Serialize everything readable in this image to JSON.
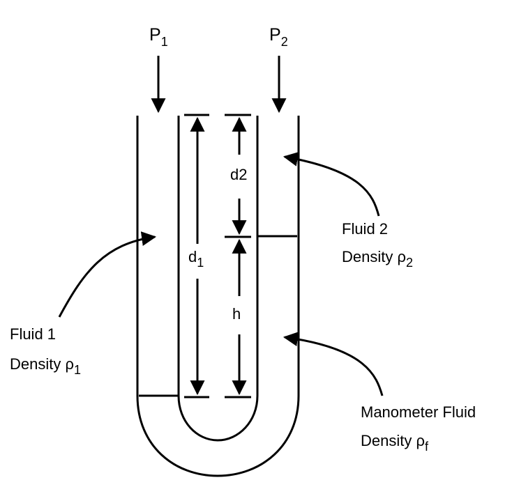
{
  "labels": {
    "p1": "P",
    "p1_sub": "1",
    "p2": "P",
    "p2_sub": "2",
    "d1": "d",
    "d1_sub": "1",
    "d2": "d2",
    "h": "h",
    "fluid1_name": "Fluid 1",
    "fluid1_density": "Density ρ",
    "fluid1_density_sub": "1",
    "fluid2_name": "Fluid 2",
    "fluid2_density": "Density ρ",
    "fluid2_density_sub": "2",
    "manometer_name": "Manometer Fluid",
    "manometer_density": "Density ρ",
    "manometer_density_sub": "f"
  }
}
